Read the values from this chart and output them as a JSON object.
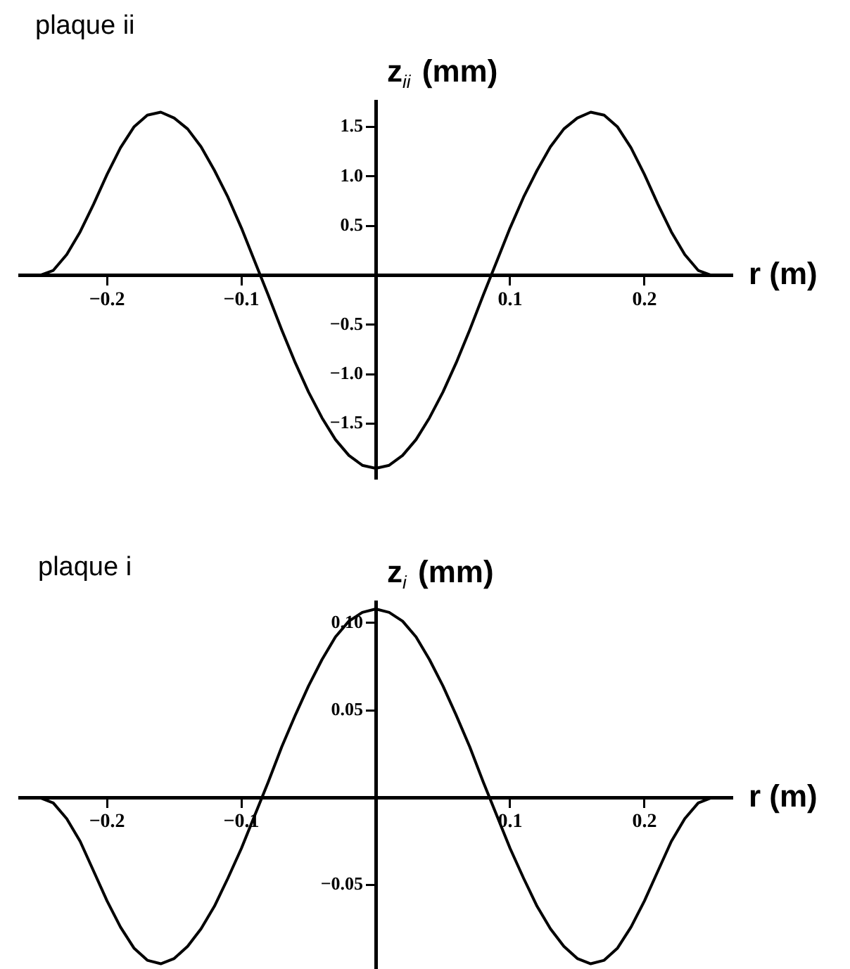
{
  "chart_data": [
    {
      "type": "line",
      "title": "plaque ii",
      "xlabel": "r (m)",
      "ylabel": "z$_{ii}$ (mm)",
      "x": [
        -0.25,
        -0.24,
        -0.23,
        -0.22,
        -0.21,
        -0.2,
        -0.19,
        -0.18,
        -0.17,
        -0.16,
        -0.15,
        -0.14,
        -0.13,
        -0.12,
        -0.11,
        -0.1,
        -0.09,
        -0.08,
        -0.07,
        -0.06,
        -0.05,
        -0.04,
        -0.03,
        -0.02,
        -0.01,
        0,
        0.01,
        0.02,
        0.03,
        0.04,
        0.05,
        0.06,
        0.07,
        0.08,
        0.09,
        0.1,
        0.11,
        0.12,
        0.13,
        0.14,
        0.15,
        0.16,
        0.17,
        0.18,
        0.19,
        0.2,
        0.21,
        0.22,
        0.23,
        0.24,
        0.25
      ],
      "series": [
        {
          "color": "#000000",
          "values": [
            0,
            0.05,
            0.21,
            0.44,
            0.72,
            1.02,
            1.29,
            1.5,
            1.62,
            1.65,
            1.59,
            1.48,
            1.3,
            1.06,
            0.79,
            0.48,
            0.14,
            -0.2,
            -0.55,
            -0.88,
            -1.18,
            -1.44,
            -1.66,
            -1.82,
            -1.92,
            -1.95,
            -1.92,
            -1.82,
            -1.66,
            -1.44,
            -1.18,
            -0.88,
            -0.55,
            -0.2,
            0.14,
            0.48,
            0.79,
            1.06,
            1.3,
            1.48,
            1.59,
            1.65,
            1.62,
            1.5,
            1.29,
            1.02,
            0.72,
            0.44,
            0.21,
            0.05,
            0
          ]
        }
      ],
      "xlim": [
        -0.265,
        0.265
      ],
      "ylim": [
        -2.05,
        1.76
      ],
      "xticks": [
        {
          "value": -0.2,
          "label": "−0.2"
        },
        {
          "value": -0.1,
          "label": "−0.1"
        },
        {
          "value": 0.1,
          "label": "0.1"
        },
        {
          "value": 0.2,
          "label": "0.2"
        }
      ],
      "yticks": [
        {
          "value": -1.5,
          "label": "−1.5"
        },
        {
          "value": -1,
          "label": "−1.0"
        },
        {
          "value": -0.5,
          "label": "−0.5"
        },
        {
          "value": 0.5,
          "label": "0.5"
        },
        {
          "value": 1,
          "label": "1.0"
        },
        {
          "value": 1.5,
          "label": "1.5"
        }
      ],
      "line_style": "solid"
    },
    {
      "type": "line",
      "title": "plaque i",
      "xlabel": "r (m)",
      "ylabel": "z$_{i}$ (mm)",
      "x": [
        -0.25,
        -0.24,
        -0.23,
        -0.22,
        -0.21,
        -0.2,
        -0.19,
        -0.18,
        -0.17,
        -0.16,
        -0.15,
        -0.14,
        -0.13,
        -0.12,
        -0.11,
        -0.1,
        -0.09,
        -0.08,
        -0.07,
        -0.06,
        -0.05,
        -0.04,
        -0.03,
        -0.02,
        -0.01,
        0,
        0.01,
        0.02,
        0.03,
        0.04,
        0.05,
        0.06,
        0.07,
        0.08,
        0.09,
        0.1,
        0.11,
        0.12,
        0.13,
        0.14,
        0.15,
        0.16,
        0.17,
        0.18,
        0.19,
        0.2,
        0.21,
        0.22,
        0.23,
        0.24,
        0.25
      ],
      "series": [
        {
          "color": "#000000",
          "values": [
            0,
            -0.003,
            -0.012,
            -0.025,
            -0.042,
            -0.059,
            -0.074,
            -0.086,
            -0.093,
            -0.095,
            -0.092,
            -0.085,
            -0.075,
            -0.062,
            -0.046,
            -0.029,
            -0.01,
            0.009,
            0.029,
            0.047,
            0.064,
            0.079,
            0.092,
            0.101,
            0.106,
            0.108,
            0.106,
            0.101,
            0.092,
            0.079,
            0.064,
            0.047,
            0.029,
            0.009,
            -0.01,
            -0.029,
            -0.046,
            -0.062,
            -0.075,
            -0.085,
            -0.092,
            -0.095,
            -0.093,
            -0.086,
            -0.074,
            -0.059,
            -0.042,
            -0.025,
            -0.012,
            -0.003,
            0
          ]
        }
      ],
      "xlim": [
        -0.265,
        0.265
      ],
      "ylim": [
        -0.098,
        0.112
      ],
      "xticks": [
        {
          "value": -0.2,
          "label": "−0.2"
        },
        {
          "value": -0.1,
          "label": "−0.1"
        },
        {
          "value": 0.1,
          "label": "0.1"
        },
        {
          "value": 0.2,
          "label": "0.2"
        }
      ],
      "yticks": [
        {
          "value": -0.05,
          "label": "−0.05"
        },
        {
          "value": 0.05,
          "label": "0.05"
        },
        {
          "value": 0.1,
          "label": "0.10"
        }
      ],
      "line_style": "solid"
    }
  ]
}
